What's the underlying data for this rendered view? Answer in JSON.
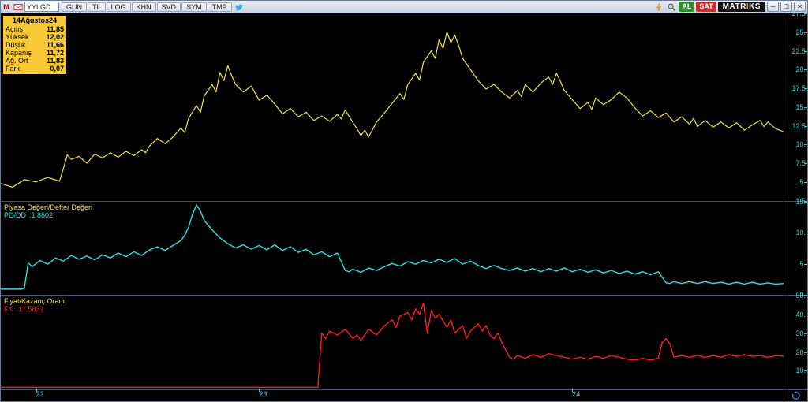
{
  "toolbar": {
    "ticker": "YYLGD",
    "buttons": [
      "GUN",
      "TL",
      "LOG",
      "KHN",
      "SVD",
      "SYM",
      "TMP"
    ],
    "buy_label": "AL",
    "sell_label": "SAT",
    "brand_pre": "MATR",
    "brand_mid": "I",
    "brand_post": "KS",
    "buy_color": "#2e8b2e",
    "sell_color": "#c43030"
  },
  "ohlc": {
    "date": "14Ağustos24",
    "rows": [
      {
        "label": "Açılış",
        "value": "11,85"
      },
      {
        "label": "Yüksek",
        "value": "12,02"
      },
      {
        "label": "Düşük",
        "value": "11,66"
      },
      {
        "label": "Kapanış",
        "value": "11,72"
      },
      {
        "label": "Ağ. Ort",
        "value": "11,83"
      },
      {
        "label": "Fark",
        "value": "-0,07"
      }
    ]
  },
  "colors": {
    "background": "#000000",
    "axis": "#2ed0d8",
    "frame": "#3d536f",
    "series_price": "#f2e43a",
    "series_pd": "#26e0e6",
    "series_fk": "#ff1a1a",
    "ohlc_box": "#f7c936"
  },
  "panes": {
    "price": {
      "type": "line",
      "height_ratio": 0.5,
      "ylim": [
        2.5,
        27.5
      ],
      "yticks": [
        2.5,
        5.0,
        7.5,
        10.0,
        12.5,
        15.0,
        17.5,
        20.0,
        22.5,
        25.0,
        27.5
      ],
      "color": "#f2e43a",
      "stroke_width": 1.2,
      "points": [
        [
          0,
          4.8
        ],
        [
          0.015,
          4.3
        ],
        [
          0.03,
          5.3
        ],
        [
          0.045,
          5.0
        ],
        [
          0.06,
          5.6
        ],
        [
          0.075,
          5.1
        ],
        [
          0.08,
          6.8
        ],
        [
          0.085,
          8.6
        ],
        [
          0.09,
          8.0
        ],
        [
          0.1,
          8.4
        ],
        [
          0.11,
          7.5
        ],
        [
          0.12,
          8.7
        ],
        [
          0.13,
          8.2
        ],
        [
          0.14,
          8.9
        ],
        [
          0.15,
          8.3
        ],
        [
          0.16,
          9.1
        ],
        [
          0.17,
          8.5
        ],
        [
          0.18,
          9.3
        ],
        [
          0.185,
          8.9
        ],
        [
          0.19,
          9.8
        ],
        [
          0.2,
          10.8
        ],
        [
          0.21,
          10.1
        ],
        [
          0.22,
          11.0
        ],
        [
          0.23,
          12.2
        ],
        [
          0.235,
          11.6
        ],
        [
          0.24,
          13.5
        ],
        [
          0.25,
          15.2
        ],
        [
          0.255,
          14.3
        ],
        [
          0.26,
          16.5
        ],
        [
          0.27,
          18.0
        ],
        [
          0.275,
          17.0
        ],
        [
          0.28,
          19.6
        ],
        [
          0.285,
          18.5
        ],
        [
          0.29,
          20.5
        ],
        [
          0.295,
          19.2
        ],
        [
          0.3,
          18.0
        ],
        [
          0.31,
          17.0
        ],
        [
          0.32,
          17.8
        ],
        [
          0.33,
          15.9
        ],
        [
          0.34,
          16.6
        ],
        [
          0.35,
          15.4
        ],
        [
          0.36,
          14.1
        ],
        [
          0.37,
          14.8
        ],
        [
          0.38,
          13.7
        ],
        [
          0.39,
          14.3
        ],
        [
          0.4,
          13.2
        ],
        [
          0.41,
          13.8
        ],
        [
          0.42,
          13.1
        ],
        [
          0.43,
          14.0
        ],
        [
          0.435,
          13.4
        ],
        [
          0.44,
          14.6
        ],
        [
          0.45,
          12.9
        ],
        [
          0.455,
          12.1
        ],
        [
          0.46,
          11.2
        ],
        [
          0.465,
          11.9
        ],
        [
          0.47,
          11.0
        ],
        [
          0.475,
          12.0
        ],
        [
          0.48,
          13.0
        ],
        [
          0.49,
          14.2
        ],
        [
          0.5,
          15.5
        ],
        [
          0.51,
          16.8
        ],
        [
          0.515,
          16.0
        ],
        [
          0.52,
          18.0
        ],
        [
          0.53,
          19.5
        ],
        [
          0.535,
          18.6
        ],
        [
          0.54,
          21.0
        ],
        [
          0.55,
          22.5
        ],
        [
          0.555,
          21.5
        ],
        [
          0.56,
          24.0
        ],
        [
          0.565,
          22.8
        ],
        [
          0.57,
          25.0
        ],
        [
          0.575,
          23.6
        ],
        [
          0.58,
          24.6
        ],
        [
          0.585,
          23.2
        ],
        [
          0.59,
          21.5
        ],
        [
          0.6,
          20.0
        ],
        [
          0.61,
          18.5
        ],
        [
          0.62,
          17.4
        ],
        [
          0.63,
          18.0
        ],
        [
          0.64,
          17.0
        ],
        [
          0.65,
          16.2
        ],
        [
          0.66,
          17.2
        ],
        [
          0.665,
          16.4
        ],
        [
          0.67,
          18.0
        ],
        [
          0.68,
          17.0
        ],
        [
          0.69,
          18.2
        ],
        [
          0.7,
          19.0
        ],
        [
          0.705,
          18.0
        ],
        [
          0.71,
          19.5
        ],
        [
          0.715,
          18.4
        ],
        [
          0.72,
          17.2
        ],
        [
          0.73,
          16.0
        ],
        [
          0.74,
          14.8
        ],
        [
          0.75,
          15.6
        ],
        [
          0.755,
          14.7
        ],
        [
          0.76,
          16.2
        ],
        [
          0.77,
          15.3
        ],
        [
          0.78,
          16.0
        ],
        [
          0.79,
          17.0
        ],
        [
          0.8,
          16.2
        ],
        [
          0.81,
          14.9
        ],
        [
          0.82,
          13.8
        ],
        [
          0.83,
          14.5
        ],
        [
          0.84,
          13.6
        ],
        [
          0.85,
          14.2
        ],
        [
          0.86,
          13.0
        ],
        [
          0.87,
          13.7
        ],
        [
          0.88,
          12.7
        ],
        [
          0.885,
          13.5
        ],
        [
          0.89,
          12.4
        ],
        [
          0.9,
          13.2
        ],
        [
          0.91,
          12.3
        ],
        [
          0.92,
          13.0
        ],
        [
          0.93,
          12.2
        ],
        [
          0.94,
          12.9
        ],
        [
          0.95,
          11.9
        ],
        [
          0.96,
          12.6
        ],
        [
          0.97,
          13.2
        ],
        [
          0.975,
          12.4
        ],
        [
          0.98,
          13.0
        ],
        [
          0.99,
          12.1
        ],
        [
          1.0,
          11.7
        ]
      ]
    },
    "pd": {
      "type": "line",
      "title": "Piyasa Değeri/Defter Değeri",
      "sym": "PD/DD",
      "val": ":1.8802",
      "height_ratio": 0.25,
      "ylim": [
        0,
        15
      ],
      "yticks": [
        0,
        5,
        10,
        15
      ],
      "color": "#26e0e6",
      "stroke_width": 1.4,
      "points": [
        [
          0,
          1.0
        ],
        [
          0.025,
          1.0
        ],
        [
          0.03,
          1.1
        ],
        [
          0.035,
          5.2
        ],
        [
          0.04,
          4.6
        ],
        [
          0.05,
          5.6
        ],
        [
          0.06,
          5.0
        ],
        [
          0.07,
          6.0
        ],
        [
          0.08,
          5.5
        ],
        [
          0.09,
          6.4
        ],
        [
          0.1,
          5.8
        ],
        [
          0.11,
          6.3
        ],
        [
          0.12,
          5.7
        ],
        [
          0.13,
          6.5
        ],
        [
          0.14,
          6.0
        ],
        [
          0.15,
          6.8
        ],
        [
          0.16,
          6.2
        ],
        [
          0.17,
          7.0
        ],
        [
          0.18,
          6.4
        ],
        [
          0.19,
          7.3
        ],
        [
          0.2,
          7.8
        ],
        [
          0.21,
          7.2
        ],
        [
          0.22,
          8.0
        ],
        [
          0.23,
          8.8
        ],
        [
          0.235,
          9.6
        ],
        [
          0.24,
          11.0
        ],
        [
          0.245,
          13.0
        ],
        [
          0.25,
          14.5
        ],
        [
          0.255,
          13.5
        ],
        [
          0.26,
          12.0
        ],
        [
          0.27,
          10.5
        ],
        [
          0.28,
          9.2
        ],
        [
          0.29,
          8.3
        ],
        [
          0.3,
          7.6
        ],
        [
          0.31,
          8.1
        ],
        [
          0.32,
          7.4
        ],
        [
          0.33,
          8.0
        ],
        [
          0.34,
          7.3
        ],
        [
          0.35,
          8.1
        ],
        [
          0.36,
          7.2
        ],
        [
          0.37,
          7.8
        ],
        [
          0.38,
          6.9
        ],
        [
          0.39,
          7.4
        ],
        [
          0.4,
          6.5
        ],
        [
          0.41,
          7.0
        ],
        [
          0.42,
          6.2
        ],
        [
          0.43,
          6.8
        ],
        [
          0.44,
          4.0
        ],
        [
          0.445,
          3.8
        ],
        [
          0.45,
          4.2
        ],
        [
          0.46,
          3.7
        ],
        [
          0.47,
          4.4
        ],
        [
          0.48,
          4.0
        ],
        [
          0.49,
          4.6
        ],
        [
          0.5,
          5.1
        ],
        [
          0.51,
          4.7
        ],
        [
          0.52,
          5.4
        ],
        [
          0.53,
          5.0
        ],
        [
          0.54,
          5.6
        ],
        [
          0.55,
          5.2
        ],
        [
          0.56,
          5.8
        ],
        [
          0.57,
          5.3
        ],
        [
          0.58,
          5.9
        ],
        [
          0.59,
          5.0
        ],
        [
          0.6,
          5.5
        ],
        [
          0.61,
          4.8
        ],
        [
          0.62,
          4.3
        ],
        [
          0.63,
          4.8
        ],
        [
          0.64,
          4.3
        ],
        [
          0.65,
          4.0
        ],
        [
          0.66,
          4.4
        ],
        [
          0.67,
          3.9
        ],
        [
          0.68,
          4.3
        ],
        [
          0.69,
          3.8
        ],
        [
          0.7,
          4.3
        ],
        [
          0.71,
          3.9
        ],
        [
          0.72,
          4.4
        ],
        [
          0.73,
          3.8
        ],
        [
          0.74,
          4.2
        ],
        [
          0.75,
          3.7
        ],
        [
          0.76,
          4.1
        ],
        [
          0.77,
          3.6
        ],
        [
          0.78,
          4.0
        ],
        [
          0.79,
          3.5
        ],
        [
          0.8,
          3.9
        ],
        [
          0.81,
          3.4
        ],
        [
          0.82,
          3.8
        ],
        [
          0.83,
          3.3
        ],
        [
          0.84,
          3.8
        ],
        [
          0.85,
          2.0
        ],
        [
          0.855,
          1.9
        ],
        [
          0.86,
          2.2
        ],
        [
          0.87,
          1.9
        ],
        [
          0.88,
          2.2
        ],
        [
          0.89,
          1.9
        ],
        [
          0.9,
          2.2
        ],
        [
          0.91,
          1.9
        ],
        [
          0.92,
          2.1
        ],
        [
          0.93,
          1.8
        ],
        [
          0.94,
          2.1
        ],
        [
          0.95,
          1.8
        ],
        [
          0.96,
          2.1
        ],
        [
          0.97,
          1.8
        ],
        [
          0.98,
          2.0
        ],
        [
          0.99,
          1.8
        ],
        [
          1.0,
          1.9
        ]
      ]
    },
    "fk": {
      "type": "line",
      "title": "Fiyat/Kazanç Oranı",
      "sym": "FK",
      "val": ":17.5831",
      "height_ratio": 0.25,
      "ylim": [
        0,
        50
      ],
      "yticks": [
        10,
        20,
        30,
        40,
        50
      ],
      "color": "#ff1a1a",
      "stroke_width": 1.4,
      "points": [
        [
          0,
          1.0
        ],
        [
          0.4,
          1.0
        ],
        [
          0.405,
          1.0
        ],
        [
          0.41,
          30.0
        ],
        [
          0.415,
          27.0
        ],
        [
          0.42,
          31.0
        ],
        [
          0.43,
          29.0
        ],
        [
          0.44,
          32.0
        ],
        [
          0.45,
          27.0
        ],
        [
          0.455,
          29.0
        ],
        [
          0.46,
          26.0
        ],
        [
          0.47,
          32.0
        ],
        [
          0.48,
          29.0
        ],
        [
          0.49,
          34.0
        ],
        [
          0.5,
          37.0
        ],
        [
          0.505,
          33.0
        ],
        [
          0.51,
          39.0
        ],
        [
          0.52,
          41.0
        ],
        [
          0.525,
          37.0
        ],
        [
          0.53,
          43.0
        ],
        [
          0.535,
          40.0
        ],
        [
          0.54,
          46.0
        ],
        [
          0.545,
          30.0
        ],
        [
          0.55,
          42.0
        ],
        [
          0.555,
          38.0
        ],
        [
          0.56,
          40.0
        ],
        [
          0.57,
          33.0
        ],
        [
          0.575,
          37.0
        ],
        [
          0.58,
          30.0
        ],
        [
          0.59,
          34.0
        ],
        [
          0.595,
          27.0
        ],
        [
          0.6,
          31.0
        ],
        [
          0.61,
          35.0
        ],
        [
          0.615,
          31.0
        ],
        [
          0.62,
          34.0
        ],
        [
          0.625,
          29.0
        ],
        [
          0.63,
          27.0
        ],
        [
          0.635,
          30.0
        ],
        [
          0.64,
          25.0
        ],
        [
          0.65,
          17.0
        ],
        [
          0.655,
          16.0
        ],
        [
          0.66,
          18.0
        ],
        [
          0.67,
          16.5
        ],
        [
          0.68,
          18.5
        ],
        [
          0.69,
          17.0
        ],
        [
          0.7,
          19.0
        ],
        [
          0.71,
          18.0
        ],
        [
          0.72,
          17.0
        ],
        [
          0.73,
          16.0
        ],
        [
          0.74,
          17.0
        ],
        [
          0.75,
          16.0
        ],
        [
          0.76,
          17.5
        ],
        [
          0.77,
          16.5
        ],
        [
          0.78,
          18.0
        ],
        [
          0.79,
          17.0
        ],
        [
          0.8,
          16.0
        ],
        [
          0.81,
          15.5
        ],
        [
          0.82,
          16.5
        ],
        [
          0.83,
          15.5
        ],
        [
          0.84,
          16.5
        ],
        [
          0.845,
          25.0
        ],
        [
          0.85,
          27.0
        ],
        [
          0.855,
          24.0
        ],
        [
          0.86,
          17.0
        ],
        [
          0.87,
          18.0
        ],
        [
          0.88,
          17.0
        ],
        [
          0.89,
          18.0
        ],
        [
          0.9,
          17.0
        ],
        [
          0.91,
          18.0
        ],
        [
          0.92,
          17.0
        ],
        [
          0.93,
          18.5
        ],
        [
          0.94,
          17.5
        ],
        [
          0.95,
          18.5
        ],
        [
          0.96,
          17.5
        ],
        [
          0.97,
          18.0
        ],
        [
          0.98,
          17.0
        ],
        [
          0.99,
          18.0
        ],
        [
          1.0,
          17.6
        ]
      ]
    }
  },
  "xaxis": {
    "ticks": [
      {
        "pos": 0.045,
        "label": "22"
      },
      {
        "pos": 0.33,
        "label": "23"
      },
      {
        "pos": 0.73,
        "label": "24"
      }
    ]
  }
}
